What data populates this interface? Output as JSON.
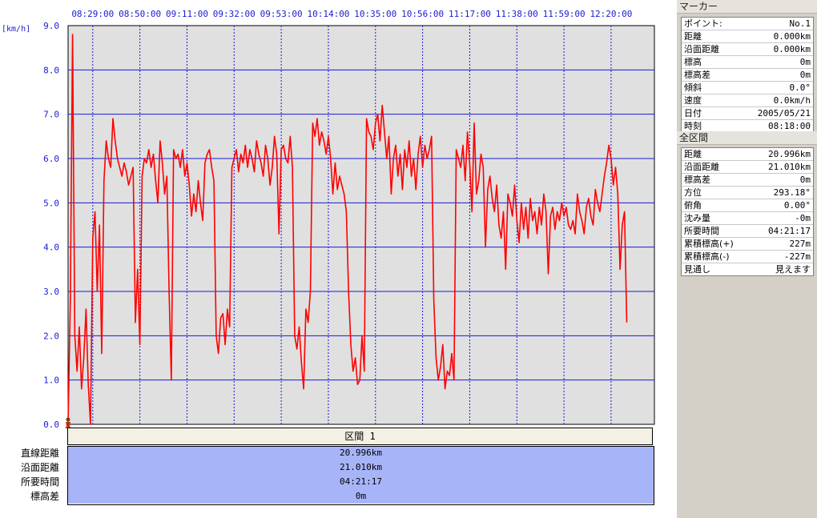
{
  "chart_data": {
    "type": "line",
    "unit_label": "[km/h]",
    "ylim": [
      0,
      9
    ],
    "y_ticks": [
      "0.0",
      "1.0",
      "2.0",
      "3.0",
      "4.0",
      "5.0",
      "6.0",
      "7.0",
      "8.0",
      "9.0"
    ],
    "x_ticks": [
      "08:29:00",
      "08:50:00",
      "09:11:00",
      "09:32:00",
      "09:53:00",
      "10:14:00",
      "10:35:00",
      "10:56:00",
      "11:17:00",
      "11:38:00",
      "11:59:00",
      "12:20:00"
    ],
    "grid": true,
    "series": [
      {
        "color": "#ff0000",
        "x_minutes_after_0818": [
          0,
          1,
          2,
          3,
          4,
          5,
          6,
          7,
          8,
          9,
          10,
          11,
          12,
          13,
          14,
          15,
          16,
          17,
          18,
          19,
          20,
          21,
          22,
          23,
          24,
          25,
          26,
          27,
          28,
          29,
          30,
          31,
          32,
          33,
          34,
          35,
          36,
          37,
          38,
          39,
          40,
          41,
          42,
          43,
          44,
          45,
          46,
          47,
          48,
          49,
          50,
          51,
          52,
          53,
          54,
          55,
          56,
          57,
          58,
          59,
          60,
          61,
          62,
          63,
          64,
          65,
          66,
          67,
          68,
          69,
          70,
          71,
          72,
          73,
          74,
          75,
          76,
          77,
          78,
          79,
          80,
          81,
          82,
          83,
          84,
          85,
          86,
          87,
          88,
          89,
          90,
          91,
          92,
          93,
          94,
          95,
          96,
          97,
          98,
          99,
          100,
          101,
          102,
          103,
          104,
          105,
          106,
          107,
          108,
          109,
          110,
          111,
          112,
          113,
          114,
          115,
          116,
          117,
          118,
          119,
          120,
          121,
          122,
          123,
          124,
          125,
          126,
          127,
          128,
          129,
          130,
          131,
          132,
          133,
          134,
          135,
          136,
          137,
          138,
          139,
          140,
          141,
          142,
          143,
          144,
          145,
          146,
          147,
          148,
          149,
          150,
          151,
          152,
          153,
          154,
          155,
          156,
          157,
          158,
          159,
          160,
          161,
          162,
          163,
          164,
          165,
          166,
          167,
          168,
          169,
          170,
          171,
          172,
          173,
          174,
          175,
          176,
          177,
          178,
          179,
          180,
          181,
          182,
          183,
          184,
          185,
          186,
          187,
          188,
          189,
          190,
          191,
          192,
          193,
          194,
          195,
          196,
          197,
          198,
          199,
          200,
          201,
          202,
          203,
          204,
          205,
          206,
          207,
          208,
          209,
          210,
          211,
          212,
          213,
          214,
          215,
          216,
          217,
          218,
          219,
          220,
          221,
          222,
          223,
          224,
          225,
          226,
          227,
          228,
          229,
          230,
          231,
          232,
          233,
          234,
          235,
          236,
          237,
          238,
          239,
          240,
          241,
          242,
          243,
          244,
          245,
          246,
          247,
          248,
          249,
          250,
          251,
          252,
          253,
          254,
          255,
          256,
          257,
          258,
          259,
          260,
          261
        ],
        "values": [
          0.0,
          2.8,
          8.8,
          2.0,
          1.2,
          2.2,
          0.8,
          1.5,
          2.6,
          0.9,
          0.0,
          4.2,
          4.8,
          3.0,
          4.5,
          1.6,
          5.5,
          6.4,
          6.0,
          5.8,
          6.9,
          6.4,
          6.0,
          5.8,
          5.6,
          5.9,
          5.7,
          5.4,
          5.6,
          5.8,
          2.3,
          3.5,
          1.8,
          5.6,
          6.0,
          5.9,
          6.2,
          5.8,
          6.1,
          5.5,
          5.0,
          6.4,
          5.9,
          5.2,
          5.6,
          3.0,
          1.0,
          6.2,
          6.0,
          6.1,
          5.8,
          6.2,
          5.6,
          5.9,
          5.4,
          4.7,
          5.2,
          4.8,
          5.5,
          5.0,
          4.6,
          5.9,
          6.1,
          6.2,
          5.8,
          5.5,
          2.0,
          1.6,
          2.4,
          2.5,
          1.8,
          2.6,
          2.2,
          5.8,
          6.0,
          6.2,
          5.7,
          6.1,
          5.9,
          6.3,
          5.8,
          6.2,
          6.0,
          5.7,
          6.4,
          6.1,
          5.9,
          5.6,
          6.3,
          6.0,
          5.4,
          5.8,
          6.5,
          6.1,
          4.3,
          6.2,
          6.3,
          6.0,
          5.9,
          6.5,
          5.8,
          2.0,
          1.7,
          2.2,
          1.4,
          0.8,
          2.6,
          2.3,
          3.0,
          6.8,
          6.5,
          6.9,
          6.3,
          6.6,
          6.4,
          6.1,
          6.5,
          6.0,
          5.2,
          5.9,
          5.3,
          5.6,
          5.4,
          5.2,
          4.8,
          3.0,
          1.8,
          1.2,
          1.5,
          0.9,
          1.0,
          2.0,
          1.2,
          6.9,
          6.6,
          6.5,
          6.2,
          6.8,
          7.0,
          6.4,
          7.2,
          6.6,
          6.0,
          6.5,
          5.2,
          6.0,
          6.3,
          5.6,
          6.1,
          5.3,
          6.2,
          5.8,
          6.4,
          5.6,
          6.0,
          5.3,
          6.1,
          6.5,
          5.8,
          6.3,
          6.0,
          6.2,
          6.5,
          2.8,
          1.5,
          1.0,
          1.3,
          1.8,
          0.8,
          1.2,
          1.1,
          1.6,
          1.0,
          6.2,
          6.0,
          5.8,
          6.3,
          5.5,
          6.6,
          5.9,
          4.8,
          6.8,
          5.2,
          5.5,
          6.1,
          5.8,
          4.0,
          5.3,
          5.6,
          5.1,
          4.8,
          5.4,
          4.5,
          4.2,
          4.8,
          3.5,
          5.2,
          5.0,
          4.7,
          5.4,
          4.6,
          4.1,
          5.0,
          4.4,
          4.9,
          4.2,
          5.1,
          4.6,
          4.8,
          4.3,
          4.9,
          4.5,
          5.2,
          4.8,
          3.4,
          4.7,
          4.9,
          4.4,
          4.8,
          4.6,
          5.0,
          4.7,
          4.9,
          4.5,
          4.4,
          4.6,
          4.3,
          5.2,
          4.8,
          4.6,
          4.3,
          4.9,
          5.1,
          4.7,
          4.5,
          5.3,
          5.0,
          4.8,
          5.2,
          5.6,
          5.9,
          6.3,
          6.0,
          5.4,
          5.8,
          5.2,
          3.5,
          4.5,
          4.8,
          2.3
        ]
      }
    ]
  },
  "segment": {
    "header": "区間 1",
    "rows": [
      {
        "label": "直線距離",
        "value": "20.996km"
      },
      {
        "label": "沿面距離",
        "value": "21.010km"
      },
      {
        "label": "所要時間",
        "value": "04:21:17"
      },
      {
        "label": "標高差",
        "value": "0m"
      }
    ]
  },
  "marker_panel": {
    "title": "マーカー",
    "rows": [
      {
        "label": "ポイント:",
        "value": "No.1"
      },
      {
        "label": "距離",
        "value": "0.000km"
      },
      {
        "label": "沿面距離",
        "value": "0.000km"
      },
      {
        "label": "標高",
        "value": "0m"
      },
      {
        "label": "標高差",
        "value": "0m"
      },
      {
        "label": "傾斜",
        "value": "0.0°"
      },
      {
        "label": "速度",
        "value": "0.0km/h"
      },
      {
        "label": "日付",
        "value": "2005/05/21"
      },
      {
        "label": "時刻",
        "value": "08:18:00"
      }
    ]
  },
  "total_panel": {
    "title": "全区間",
    "rows": [
      {
        "label": "距離",
        "value": "20.996km"
      },
      {
        "label": "沿面距離",
        "value": "21.010km"
      },
      {
        "label": "標高差",
        "value": "0m"
      },
      {
        "label": "方位",
        "value": "293.18°"
      },
      {
        "label": "俯角",
        "value": "0.00°"
      },
      {
        "label": "沈み量",
        "value": "-0m"
      },
      {
        "label": "所要時間",
        "value": "04:21:17"
      },
      {
        "label": "累積標高(+)",
        "value": "227m"
      },
      {
        "label": "累積標高(-)",
        "value": "-227m"
      },
      {
        "label": "見通し",
        "value": "見えます"
      }
    ]
  },
  "colors": {
    "line": "#ff0000",
    "grid": "#1a1ad8",
    "plot_bg": "#e0e0e0",
    "segment_bg": "#a8b4f8",
    "panel_bg": "#d4d0c8"
  }
}
